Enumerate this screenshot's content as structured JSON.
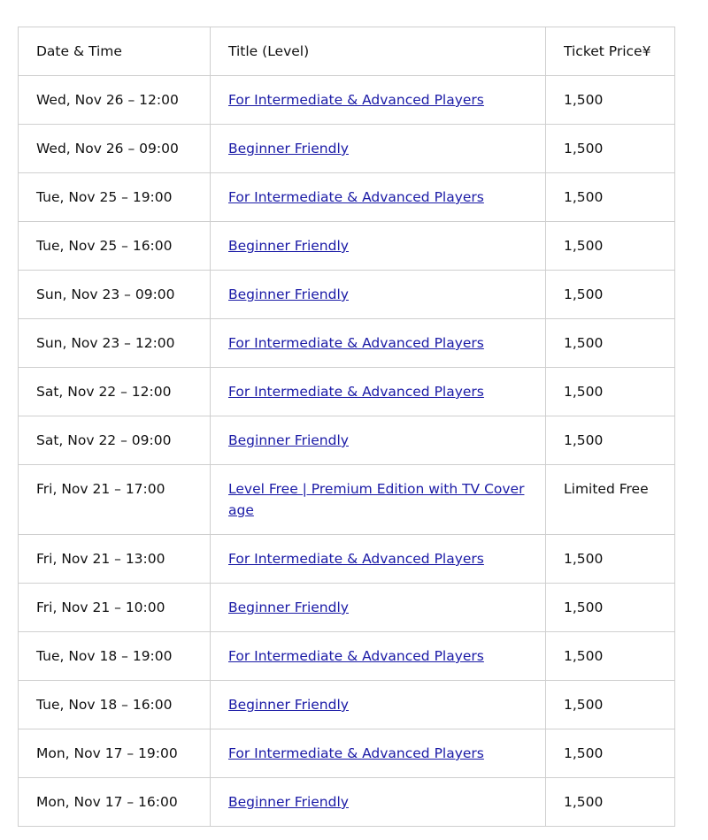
{
  "table": {
    "headers": [
      "Date & Time",
      "Title (Level)",
      "Ticket Price¥"
    ],
    "link_color": "#1a1aa6",
    "rows": [
      {
        "datetime": "Wed, Nov 26 – 12:00",
        "title": "For Intermediate & Advanced Players",
        "price": "1,500"
      },
      {
        "datetime": "Wed, Nov 26 – 09:00",
        "title": "Beginner Friendly",
        "price": "1,500"
      },
      {
        "datetime": "Tue, Nov 25 – 19:00",
        "title": "For Intermediate & Advanced Players",
        "price": "1,500"
      },
      {
        "datetime": "Tue, Nov 25 – 16:00",
        "title": "Beginner Friendly",
        "price": "1,500"
      },
      {
        "datetime": "Sun, Nov 23 – 09:00",
        "title": "Beginner Friendly",
        "price": "1,500"
      },
      {
        "datetime": "Sun, Nov 23 – 12:00",
        "title": "For Intermediate & Advanced Players",
        "price": "1,500"
      },
      {
        "datetime": "Sat, Nov 22 – 12:00",
        "title": "For Intermediate & Advanced Players",
        "price": "1,500"
      },
      {
        "datetime": "Sat, Nov 22 – 09:00",
        "title": "Beginner Friendly",
        "price": "1,500"
      },
      {
        "datetime": "Fri, Nov 21 – 17:00",
        "title": "Level Free | Premium Edition with TV Coverage",
        "price": "Limited Free"
      },
      {
        "datetime": "Fri, Nov 21 – 13:00",
        "title": "For Intermediate & Advanced Players",
        "price": "1,500"
      },
      {
        "datetime": "Fri, Nov 21 – 10:00",
        "title": "Beginner Friendly",
        "price": "1,500"
      },
      {
        "datetime": "Tue, Nov 18 – 19:00",
        "title": "For Intermediate & Advanced Players",
        "price": "1,500"
      },
      {
        "datetime": "Tue, Nov 18 – 16:00",
        "title": "Beginner Friendly",
        "price": "1,500"
      },
      {
        "datetime": "Mon, Nov 17 – 19:00",
        "title": "For Intermediate & Advanced Players",
        "price": "1,500"
      },
      {
        "datetime": "Mon, Nov 17 – 16:00",
        "title": "Beginner Friendly",
        "price": "1,500"
      }
    ]
  }
}
